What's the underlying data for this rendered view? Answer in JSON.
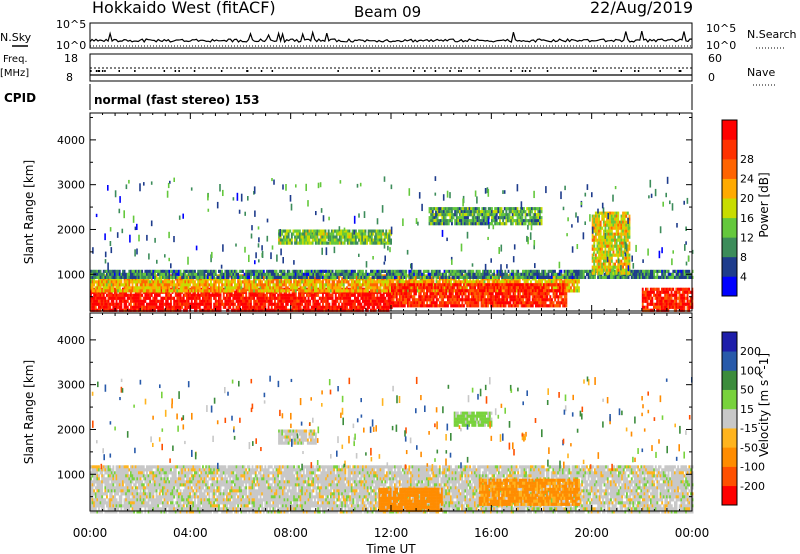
{
  "header": {
    "title": "Hokkaido West (fitACF)",
    "beam": "Beam 09",
    "date": "22/Aug/2019"
  },
  "top_panels": {
    "nsky_label": "N.Sky",
    "nsearch_label": "N.Search",
    "noise_ticks_left": [
      "10^5",
      "10^0"
    ],
    "noise_ticks_right": [
      "10^5",
      "10^0"
    ],
    "freq_label": "Freq.",
    "freq_unit": "[MHz]",
    "freq_ticks": [
      "18",
      "8"
    ],
    "nave_label": "Nave",
    "nave_ticks": [
      "60",
      "0"
    ],
    "cpid_label": "CPID",
    "cpid_text": "normal (fast stereo) 153"
  },
  "colors": {
    "power_scale": [
      "#0000ff",
      "#1e3c8c",
      "#3c8c5a",
      "#64c83c",
      "#c8dc00",
      "#ffaa00",
      "#ff6400",
      "#ff3200",
      "#ff0000"
    ],
    "velocity_scale": [
      "#1e1eaa",
      "#285aaa",
      "#3c8c3c",
      "#78d23c",
      "#c8c8c8",
      "#ffb41e",
      "#ff8c00",
      "#ff5000",
      "#ff0000"
    ]
  },
  "chart_data": [
    {
      "type": "heatmap",
      "name": "power",
      "ylabel": "Slant Range [km]",
      "yticks": [
        "1000",
        "2000",
        "3000",
        "4000"
      ],
      "ylim": [
        180,
        4600
      ],
      "xlim": [
        "00:00",
        "24:00"
      ],
      "colorbar_label": "Power [dB]",
      "colorbar_ticks": [
        "4",
        "8",
        "12",
        "16",
        "20",
        "24",
        "28"
      ],
      "colorbar_range": [
        0,
        30
      ],
      "features": [
        {
          "x_start_h": 0,
          "x_end_h": 12,
          "r_min_km": 180,
          "r_max_km": 700,
          "value_db": 28
        },
        {
          "x_start_h": 0,
          "x_end_h": 19.5,
          "r_min_km": 600,
          "r_max_km": 1000,
          "value_db": 18
        },
        {
          "x_start_h": 12,
          "x_end_h": 19,
          "r_min_km": 300,
          "r_max_km": 800,
          "value_db": 26
        },
        {
          "x_start_h": 0,
          "x_end_h": 24,
          "r_min_km": 950,
          "r_max_km": 1100,
          "value_db": 8
        },
        {
          "x_start_h": 7.5,
          "x_end_h": 12,
          "r_min_km": 1700,
          "r_max_km": 2000,
          "value_db": 12
        },
        {
          "x_start_h": 13.5,
          "x_end_h": 18,
          "r_min_km": 2100,
          "r_max_km": 2500,
          "value_db": 10
        },
        {
          "x_start_h": 20,
          "x_end_h": 21.5,
          "r_min_km": 1000,
          "r_max_km": 2400,
          "value_db": 16
        },
        {
          "x_start_h": 22,
          "x_end_h": 24,
          "r_min_km": 200,
          "r_max_km": 700,
          "value_db": 26
        }
      ]
    },
    {
      "type": "heatmap",
      "name": "velocity",
      "ylabel": "Slant Range [km]",
      "yticks": [
        "1000",
        "2000",
        "3000",
        "4000"
      ],
      "ylim": [
        180,
        4600
      ],
      "xlabel": "Time UT",
      "xticks": [
        "00:00",
        "04:00",
        "08:00",
        "12:00",
        "16:00",
        "20:00",
        "00:00"
      ],
      "xlim": [
        "00:00",
        "24:00"
      ],
      "colorbar_label": "Velocity [m s^-1]",
      "colorbar_ticks": [
        "200",
        "100",
        "50",
        "15",
        "-15",
        "-50",
        "-100",
        "-200"
      ],
      "features": [
        {
          "x_start_h": 0,
          "x_end_h": 24,
          "r_min_km": 180,
          "r_max_km": 1200,
          "value_ms": 0
        },
        {
          "x_start_h": 11.5,
          "x_end_h": 14,
          "r_min_km": 180,
          "r_max_km": 700,
          "value_ms": -80
        },
        {
          "x_start_h": 15.5,
          "x_end_h": 19.5,
          "r_min_km": 300,
          "r_max_km": 900,
          "value_ms": -60
        },
        {
          "x_start_h": 14.5,
          "x_end_h": 16,
          "r_min_km": 2100,
          "r_max_km": 2400,
          "value_ms": 30
        },
        {
          "x_start_h": 7.5,
          "x_end_h": 9,
          "r_min_km": 1700,
          "r_max_km": 2000,
          "value_ms": 0
        }
      ]
    }
  ]
}
